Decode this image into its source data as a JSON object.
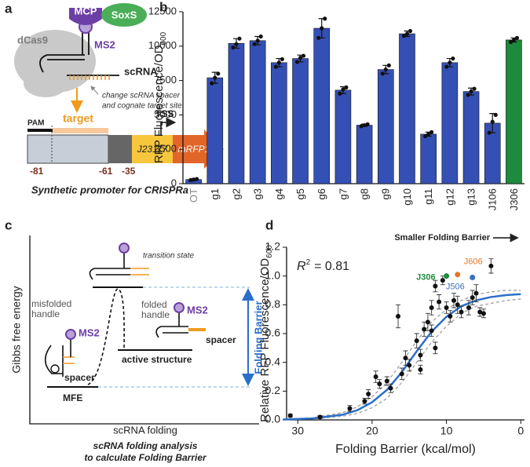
{
  "panel_a": {
    "letter": "a",
    "mcp": "MCP",
    "soxs": "SoxS",
    "dcas9": "dCas9",
    "ms2": "MS2",
    "scrna": "scRNA",
    "note_line1": "change scRNA spacer",
    "note_line2": "and cognate target site",
    "pam": "PAM",
    "target": "target",
    "tss": "TSS",
    "promoter": "J23117",
    "reporter": "mRFP1",
    "pos_81": "-81",
    "pos_61": "-61",
    "pos_35": "-35",
    "caption": "Synthetic promoter for CRISPRa"
  },
  "panel_c": {
    "letter": "c",
    "transition": "transition state",
    "misfolded_1": "misfolded",
    "misfolded_2": "handle",
    "ms2_left": "MS2",
    "spacer_left": "spacer",
    "folded_1": "folded",
    "folded_2": "handle",
    "ms2_right": "MS2",
    "spacer_right": "spacer",
    "active": "active structure",
    "mfe": "MFE",
    "barrier": "Folding Barrier",
    "ylabel": "Gibbs free energy",
    "xlabel": "scRNA folding",
    "caption_1": "scRNA folding analysis",
    "caption_2": "to calculate Folding Barrier"
  },
  "chart_data": [
    {
      "type": "bar",
      "letter": "b",
      "ylabel": "RFP Fluorescence/OD",
      "ylabel_sub": "600",
      "categories": [
        "OT",
        "g1",
        "g2",
        "g3",
        "g4",
        "g5",
        "g6",
        "g7",
        "g8",
        "g9",
        "g10",
        "g11",
        "g12",
        "g13",
        "J106",
        "J306"
      ],
      "values": [
        300,
        7700,
        10200,
        10400,
        8800,
        9100,
        11300,
        6800,
        4250,
        8300,
        10900,
        3600,
        8800,
        6700,
        4400,
        10450
      ],
      "errors": [
        50,
        400,
        350,
        300,
        300,
        250,
        700,
        250,
        80,
        300,
        200,
        150,
        300,
        250,
        700,
        150
      ],
      "replicates": [
        [
          260,
          300,
          340
        ],
        [
          7300,
          7700,
          8000
        ],
        [
          9900,
          10150,
          10550
        ],
        [
          10150,
          10400,
          10700
        ],
        [
          8500,
          8800,
          9050
        ],
        [
          8850,
          9150,
          9300
        ],
        [
          10600,
          11300,
          12000
        ],
        [
          6550,
          6850,
          7000
        ],
        [
          4180,
          4250,
          4320
        ],
        [
          8000,
          8300,
          8600
        ],
        [
          10750,
          10900,
          11100
        ],
        [
          3450,
          3600,
          3750
        ],
        [
          8500,
          8800,
          9100
        ],
        [
          6450,
          6700,
          6900
        ],
        [
          3700,
          4500,
          5000
        ],
        [
          10300,
          10450,
          10600
        ]
      ],
      "colors": [
        "#3550b4",
        "#3550b4",
        "#3550b4",
        "#3550b4",
        "#3550b4",
        "#3550b4",
        "#3550b4",
        "#3550b4",
        "#3550b4",
        "#3550b4",
        "#3550b4",
        "#3550b4",
        "#3550b4",
        "#3550b4",
        "#3550b4",
        "#1e8a3e"
      ],
      "category_colors": [
        "#888888",
        "#222222",
        "#222222",
        "#222222",
        "#222222",
        "#222222",
        "#222222",
        "#222222",
        "#222222",
        "#222222",
        "#222222",
        "#222222",
        "#222222",
        "#222222",
        "#222222",
        "#222222"
      ],
      "ylim": [
        0,
        12500
      ],
      "yticks": [
        0,
        2500,
        5000,
        7500,
        10000,
        12500
      ]
    },
    {
      "type": "scatter",
      "letter": "d",
      "ylabel": "Relative RFP Fluorescence/OD",
      "ylabel_sub": "600",
      "xlabel": "Folding Barrier (kcal/mol)",
      "annotation": "Smaller Folding Barrier",
      "r2_symbol": "R",
      "r2_sup": "2",
      "r2_text": "= 0.81",
      "xlim": [
        31.5,
        -0.5
      ],
      "ylim": [
        0,
        1.2
      ],
      "xticks": [
        30,
        20,
        10,
        0
      ],
      "yticks": [
        {
          "value": 0,
          "label": "0.0"
        },
        {
          "value": 0.2,
          "label": "0.2"
        },
        {
          "value": 0.4,
          "label": "0.4"
        },
        {
          "value": 0.6,
          "label": "0.6"
        },
        {
          "value": 0.8,
          "label": "0.8"
        },
        {
          "value": 1.0,
          "label": "1.0"
        },
        {
          "value": 1.2,
          "label": "1.2"
        }
      ],
      "points": {
        "color": "#111111",
        "x": [
          31,
          27,
          23,
          21,
          20.5,
          19.5,
          19,
          18,
          17.5,
          16,
          15.5,
          15,
          16.5,
          14,
          13.5,
          13,
          12.5,
          12,
          11.5,
          12,
          11,
          10,
          9.5,
          9,
          8.5,
          8,
          7,
          6,
          5.5,
          5,
          11.5,
          10.5,
          4,
          6.5,
          13.5
        ],
        "y": [
          0.03,
          0.02,
          0.08,
          0.13,
          0.18,
          0.3,
          0.25,
          0.27,
          0.22,
          0.32,
          0.43,
          0.38,
          0.72,
          0.55,
          0.45,
          0.63,
          0.68,
          0.62,
          0.5,
          0.78,
          0.82,
          0.78,
          0.72,
          0.83,
          0.8,
          0.75,
          0.78,
          0.88,
          0.75,
          0.74,
          0.93,
          0.97,
          1.07,
          0.85,
          0.35
        ],
        "errors": [
          0.01,
          0.01,
          0.02,
          0.02,
          0.03,
          0.04,
          0.03,
          0.03,
          0.03,
          0.04,
          0.05,
          0.04,
          0.08,
          0.05,
          0.04,
          0.05,
          0.06,
          0.04,
          0.04,
          0.05,
          0.05,
          0.04,
          0.04,
          0.05,
          0.06,
          0.04,
          0.05,
          0.06,
          0.03,
          0.03,
          0.04,
          0.03,
          0.05,
          0.05,
          0.03
        ]
      },
      "highlights": [
        {
          "name": "J306",
          "color": "#1e8a3e",
          "x": 10,
          "y": 1.0,
          "error": 0.02
        },
        {
          "name": "J606",
          "color": "#e0782a",
          "x": 8.5,
          "y": 1.01,
          "error": 0.02
        },
        {
          "name": "J506",
          "color": "#3a6fc0",
          "x": 6.5,
          "y": 0.99,
          "error": 0.02
        }
      ],
      "fit": {
        "color": "#2a6fc9",
        "x": [
          32,
          28,
          24,
          22,
          20,
          18,
          16,
          14,
          12,
          10,
          8,
          6,
          4,
          2,
          0
        ],
        "values": [
          0.003,
          0.01,
          0.036,
          0.067,
          0.123,
          0.209,
          0.332,
          0.477,
          0.613,
          0.717,
          0.79,
          0.831,
          0.854,
          0.867,
          0.874
        ]
      },
      "ci": {
        "color": "#999999",
        "x": [
          32,
          28,
          24,
          22,
          20,
          18,
          16,
          14,
          12,
          10,
          8,
          6,
          4,
          2,
          0
        ],
        "upper": [
          0.005,
          0.015,
          0.05,
          0.09,
          0.16,
          0.26,
          0.4,
          0.55,
          0.68,
          0.77,
          0.83,
          0.87,
          0.89,
          0.9,
          0.9
        ],
        "lower": [
          0.002,
          0.007,
          0.025,
          0.045,
          0.085,
          0.15,
          0.26,
          0.4,
          0.54,
          0.65,
          0.74,
          0.79,
          0.81,
          0.83,
          0.84
        ]
      }
    }
  ]
}
